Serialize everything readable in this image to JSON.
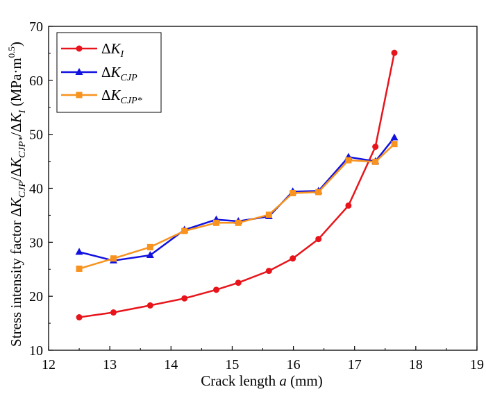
{
  "chart_data": {
    "type": "line",
    "xlabel": {
      "prefix": "Crack length ",
      "var": "a",
      "suffix": " (mm)"
    },
    "ylabel": {
      "prefix": "Stress intensity factor ",
      "delta": "Δ",
      "K": "K",
      "sub_cjp": "CJP",
      "sub_cjp_star": "CJP*",
      "sub_i": "I",
      "slash": "/",
      "unit_open": " (MPa·m",
      "unit_exp": "0.5",
      "unit_close": ")"
    },
    "xlim": [
      12,
      19
    ],
    "ylim": [
      10,
      70
    ],
    "xticks": [
      "12",
      "13",
      "14",
      "15",
      "16",
      "17",
      "18",
      "19"
    ],
    "yticks": [
      "10",
      "20",
      "30",
      "40",
      "50",
      "60",
      "70"
    ],
    "grid": false,
    "legend_position": "top-left",
    "series": [
      {
        "name": "ΔK_I",
        "legend_main": "Δ",
        "legend_var": "K",
        "legend_sub": "I",
        "color": "#e8141b",
        "marker": "circle",
        "x": [
          12.5,
          13.06,
          13.66,
          14.22,
          14.74,
          15.1,
          15.6,
          15.99,
          16.41,
          16.9,
          17.34,
          17.65
        ],
        "y": [
          16.1,
          17.0,
          18.3,
          19.6,
          21.2,
          22.5,
          24.7,
          27.0,
          30.6,
          36.8,
          47.7,
          65.1
        ]
      },
      {
        "name": "ΔK_CJP",
        "legend_main": "Δ",
        "legend_var": "K",
        "legend_sub": "CJP",
        "color": "#1111e0",
        "marker": "triangle",
        "x": [
          12.5,
          13.06,
          13.66,
          14.22,
          14.74,
          15.1,
          15.6,
          15.99,
          16.41,
          16.9,
          17.34,
          17.65
        ],
        "y": [
          28.2,
          26.6,
          27.6,
          32.3,
          34.2,
          33.9,
          34.8,
          39.4,
          39.5,
          45.8,
          45.0,
          49.4
        ]
      },
      {
        "name": "ΔK_CJP*",
        "legend_main": "Δ",
        "legend_var": "K",
        "legend_sub": "CJP*",
        "color": "#f7931e",
        "marker": "square",
        "x": [
          12.5,
          13.06,
          13.66,
          14.22,
          14.74,
          15.1,
          15.6,
          15.99,
          16.41,
          16.9,
          17.34,
          17.65
        ],
        "y": [
          25.1,
          27.0,
          29.1,
          32.1,
          33.6,
          33.6,
          35.1,
          39.1,
          39.3,
          45.2,
          44.9,
          48.2
        ]
      }
    ]
  }
}
